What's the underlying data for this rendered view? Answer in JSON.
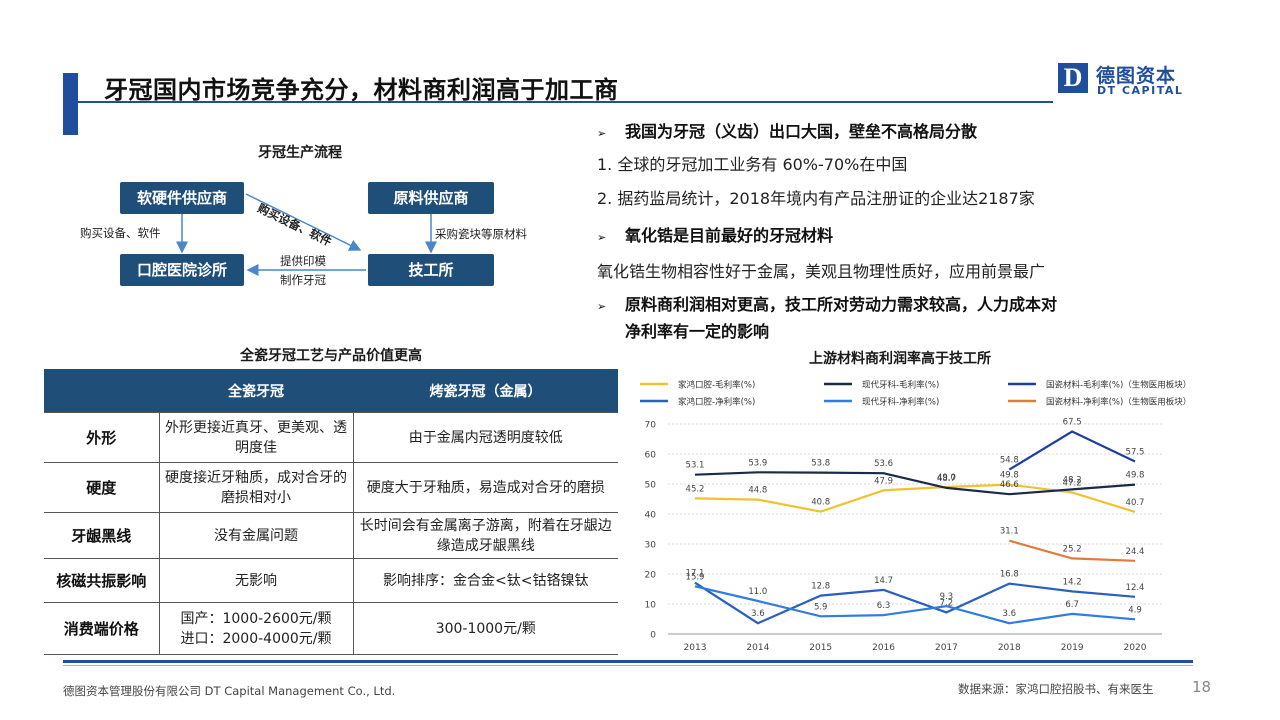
{
  "slide": {
    "title": "牙冠国内市场竞争充分，材料商利润高于加工商",
    "logo_letter": "D",
    "logo_cn": "德图资本",
    "logo_en": "DT CAPITAL"
  },
  "flow": {
    "title": "牙冠生产流程",
    "boxes": {
      "hardware": "软硬件供应商",
      "material": "原料供应商",
      "clinic": "口腔医院诊所",
      "lab": "技工所"
    },
    "labels": {
      "buy_left": "购买设备、软件",
      "buy_diag": "购买设备、软件",
      "purchase": "采购瓷块等原材料",
      "mold_1": "提供印模",
      "mold_2": "制作牙冠"
    }
  },
  "bullets": {
    "h1": "我国为牙冠（义齿）出口大国，壁垒不高格局分散",
    "p1": "1. 全球的牙冠加工业务有 60%-70%在中国",
    "p2": "2. 据药监局统计，2018年境内有产品注册证的企业达2187家",
    "h2": "氧化锆是目前最好的牙冠材料",
    "p3": "氧化锆生物相容性好于金属，美观且物理性质好，应用前景最广",
    "h3_line1": "原料商利润相对更高，技工所对劳动力需求较高，人力成本对",
    "h3_line2": "净利率有一定的影响",
    "arrow": "➢"
  },
  "table": {
    "title": "全瓷牙冠工艺与产品价值更高",
    "headers": [
      "",
      "全瓷牙冠",
      "烤瓷牙冠（金属）"
    ],
    "rows": [
      {
        "label": "外形",
        "a": "外形更接近真牙、更美观、透明度佳",
        "b": "由于金属内冠透明度较低"
      },
      {
        "label": "硬度",
        "a": "硬度接近牙釉质，成对合牙的磨损相对小",
        "b": "硬度大于牙釉质，易造成对合牙的磨损"
      },
      {
        "label": "牙龈黑线",
        "a": "没有金属问题",
        "b": "长时间会有金属离子游离，附着在牙龈边缘造成牙龈黑线"
      },
      {
        "label": "核磁共振影响",
        "a": "无影响",
        "b": "影响排序：金合金<钛<钴铬镍钛"
      },
      {
        "label": "消费端价格",
        "a_line1": "国产：1000-2600元/颗",
        "a_line2": "进口：2000-4000元/颗",
        "b": "300-1000元/颗"
      }
    ]
  },
  "chart_title": "上游材料商利润率高于技工所",
  "chart_data": {
    "type": "line",
    "categories": [
      "2013",
      "2014",
      "2015",
      "2016",
      "2017",
      "2018",
      "2019",
      "2020"
    ],
    "ylim": [
      0,
      70
    ],
    "yticks": [
      0,
      10,
      20,
      30,
      40,
      50,
      60,
      70
    ],
    "grid": true,
    "legend_position": "top",
    "series": [
      {
        "name": "家鸿口腔-毛利率(%)",
        "color": "#f2c12e",
        "values": [
          45.2,
          44.8,
          40.8,
          47.9,
          49.0,
          49.8,
          47.2,
          40.7
        ]
      },
      {
        "name": "现代牙科-毛利率(%)",
        "color": "#1c2a4a",
        "values": [
          53.1,
          53.9,
          53.8,
          53.6,
          48.7,
          46.6,
          48.2,
          49.8
        ]
      },
      {
        "name": "国瓷材料-毛利率(%)（生物医用板块）",
        "color": "#1f3f9a",
        "values": [
          null,
          null,
          null,
          null,
          null,
          54.8,
          67.5,
          57.5
        ]
      },
      {
        "name": "家鸿口腔-净利率(%)",
        "color": "#2b5fbf",
        "values": [
          17.1,
          3.6,
          12.8,
          14.7,
          7.2,
          16.8,
          14.2,
          12.4
        ]
      },
      {
        "name": "现代牙科-净利率(%)",
        "color": "#2f7de0",
        "values": [
          15.9,
          11.0,
          5.9,
          6.3,
          9.3,
          3.6,
          6.7,
          4.9
        ]
      },
      {
        "name": "国瓷材料-净利率(%)（生物医用板块）",
        "color": "#e07b39",
        "values": [
          null,
          null,
          null,
          null,
          null,
          31.1,
          25.2,
          24.4
        ]
      }
    ]
  },
  "footer": {
    "company": "德图资本管理股份有限公司  DT Capital Management  Co., Ltd.",
    "source": "数据来源：家鸿口腔招股书、有来医生",
    "page": "18"
  }
}
